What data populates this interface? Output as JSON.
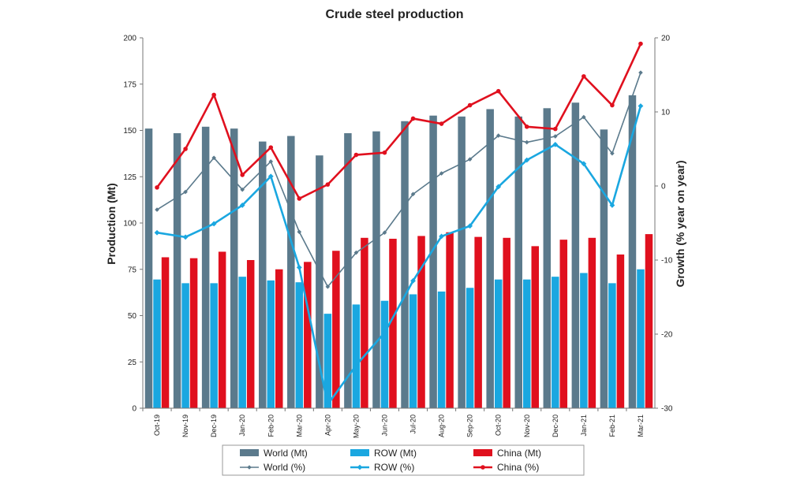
{
  "chart_data": {
    "type": "bar",
    "title": "Crude steel production",
    "ylabel_left": "Production (Mt)",
    "ylabel_right": "Growth (% year on year)",
    "ylim_left": [
      0,
      200
    ],
    "ylim_right": [
      -30,
      20
    ],
    "yticks_left": [
      "0",
      "25",
      "50",
      "75",
      "100",
      "125",
      "150",
      "175",
      "200"
    ],
    "yticks_right": [
      "-30",
      "-20",
      "-10",
      "0",
      "10",
      "20"
    ],
    "categories": [
      "Oct-19",
      "Nov-19",
      "Dec-19",
      "Jan-20",
      "Feb-20",
      "Mar-20",
      "Apr-20",
      "May-20",
      "Jun-20",
      "Jul-20",
      "Aug-20",
      "Sep-20",
      "Oct-20",
      "Nov-20",
      "Dec-20",
      "Jan-21",
      "Feb-21",
      "Mar-21"
    ],
    "bar_series": [
      {
        "name": "World (Mt)",
        "color": "#5b7a8c",
        "values": [
          151,
          148.5,
          152,
          151,
          144,
          147,
          136.5,
          148.5,
          149.5,
          155,
          158,
          157.5,
          161.5,
          157.5,
          162,
          165,
          150.5,
          169
        ]
      },
      {
        "name": "ROW (Mt)",
        "color": "#1aa7e0",
        "values": [
          69.5,
          67.5,
          67.5,
          71,
          69,
          68,
          51,
          56,
          58,
          61.5,
          63,
          65,
          69.5,
          69.5,
          71,
          73,
          67.5,
          75
        ]
      },
      {
        "name": "China (Mt)",
        "color": "#e0101e",
        "values": [
          81.5,
          81,
          84.5,
          80,
          75,
          79,
          85,
          92,
          91.5,
          93,
          95,
          92.5,
          92,
          87.5,
          91,
          92,
          83,
          94
        ]
      }
    ],
    "line_series": [
      {
        "name": "World (%)",
        "color": "#5b7a8c",
        "values": [
          -3.2,
          -0.8,
          3.8,
          -0.5,
          3.3,
          -6.2,
          -13.6,
          -9,
          -6.3,
          -1.1,
          1.7,
          3.6,
          6.8,
          5.9,
          6.7,
          9.3,
          4.4,
          15.3
        ]
      },
      {
        "name": "ROW (%)",
        "color": "#1aa7e0",
        "values": [
          -6.3,
          -6.9,
          -5.1,
          -2.6,
          1.3,
          -11,
          -29.5,
          -24.2,
          -19.8,
          -12.8,
          -6.8,
          -5.4,
          -0.1,
          3.5,
          5.6,
          3,
          -2.6,
          10.8
        ]
      },
      {
        "name": "China (%)",
        "color": "#e0101e",
        "values": [
          -0.2,
          5,
          12.3,
          1.5,
          5.2,
          -1.7,
          0.2,
          4.2,
          4.5,
          9.1,
          8.4,
          10.9,
          12.8,
          8,
          7.7,
          14.8,
          10.9,
          19.2
        ]
      }
    ],
    "grid": false,
    "legend_position": "bottom"
  }
}
